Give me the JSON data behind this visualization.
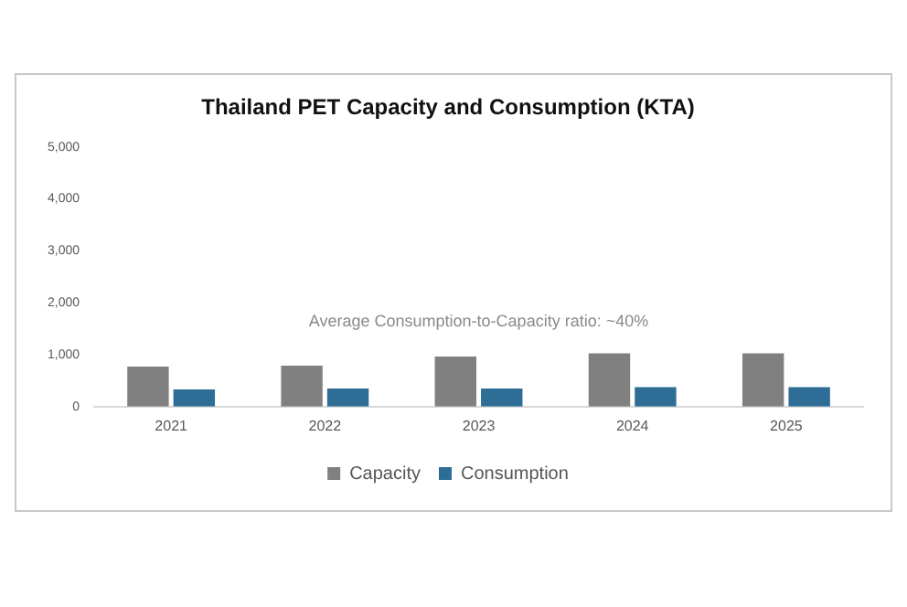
{
  "chart_data": {
    "type": "bar",
    "title": "Thailand PET Capacity and Consumption (KTA)",
    "categories": [
      "2021",
      "2022",
      "2023",
      "2024",
      "2025"
    ],
    "series": [
      {
        "name": "Capacity",
        "color": "#808080",
        "values": [
          770,
          790,
          965,
          1025,
          1025
        ]
      },
      {
        "name": "Consumption",
        "color": "#2e6e96",
        "values": [
          330,
          350,
          350,
          375,
          375
        ]
      }
    ],
    "ylim": [
      0,
      5000
    ],
    "yticks": [
      {
        "value": 0,
        "label": "0"
      },
      {
        "value": 1000,
        "label": "1,000"
      },
      {
        "value": 2000,
        "label": "2,000"
      },
      {
        "value": 3000,
        "label": "3,000"
      },
      {
        "value": 4000,
        "label": "4,000"
      },
      {
        "value": 5000,
        "label": "5,000"
      }
    ],
    "annotations": [
      "Average Consumption-to-Capacity ratio: ~40%"
    ],
    "grid": false,
    "legend": "bottom"
  }
}
